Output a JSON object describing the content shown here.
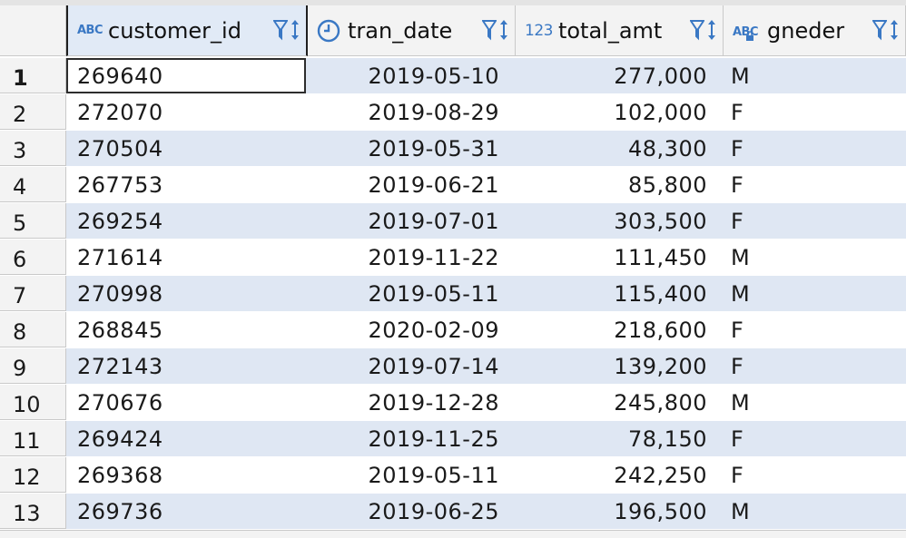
{
  "columns": [
    {
      "type_badge": "ABC",
      "label": "customer_id",
      "type_icon": "text-type-icon"
    },
    {
      "type_badge": "",
      "label": "tran_date",
      "type_icon": "clock-icon"
    },
    {
      "type_badge": "123",
      "label": "total_amt",
      "type_icon": "number-type-icon"
    },
    {
      "type_badge": "ABC",
      "label": "gneder",
      "type_icon": "text-locked-type-icon"
    }
  ],
  "rows": [
    {
      "num": "1",
      "customer_id": "269640",
      "tran_date": "2019-05-10",
      "total_amt": "277,000",
      "gneder": "M"
    },
    {
      "num": "2",
      "customer_id": "272070",
      "tran_date": "2019-08-29",
      "total_amt": "102,000",
      "gneder": "F"
    },
    {
      "num": "3",
      "customer_id": "270504",
      "tran_date": "2019-05-31",
      "total_amt": "48,300",
      "gneder": "F"
    },
    {
      "num": "4",
      "customer_id": "267753",
      "tran_date": "2019-06-21",
      "total_amt": "85,800",
      "gneder": "F"
    },
    {
      "num": "5",
      "customer_id": "269254",
      "tran_date": "2019-07-01",
      "total_amt": "303,500",
      "gneder": "F"
    },
    {
      "num": "6",
      "customer_id": "271614",
      "tran_date": "2019-11-22",
      "total_amt": "111,450",
      "gneder": "M"
    },
    {
      "num": "7",
      "customer_id": "270998",
      "tran_date": "2019-05-11",
      "total_amt": "115,400",
      "gneder": "M"
    },
    {
      "num": "8",
      "customer_id": "268845",
      "tran_date": "2020-02-09",
      "total_amt": "218,600",
      "gneder": "F"
    },
    {
      "num": "9",
      "customer_id": "272143",
      "tran_date": "2019-07-14",
      "total_amt": "139,200",
      "gneder": "F"
    },
    {
      "num": "10",
      "customer_id": "270676",
      "tran_date": "2019-12-28",
      "total_amt": "245,800",
      "gneder": "M"
    },
    {
      "num": "11",
      "customer_id": "269424",
      "tran_date": "2019-11-25",
      "total_amt": "78,150",
      "gneder": "F"
    },
    {
      "num": "12",
      "customer_id": "269368",
      "tran_date": "2019-05-11",
      "total_amt": "242,250",
      "gneder": "F"
    },
    {
      "num": "13",
      "customer_id": "269736",
      "tran_date": "2019-06-25",
      "total_amt": "196,500",
      "gneder": "M"
    }
  ],
  "colors": {
    "accent": "#3a78c4",
    "alt_row": "#dfe7f3",
    "header_bg": "#f3f3f3"
  }
}
